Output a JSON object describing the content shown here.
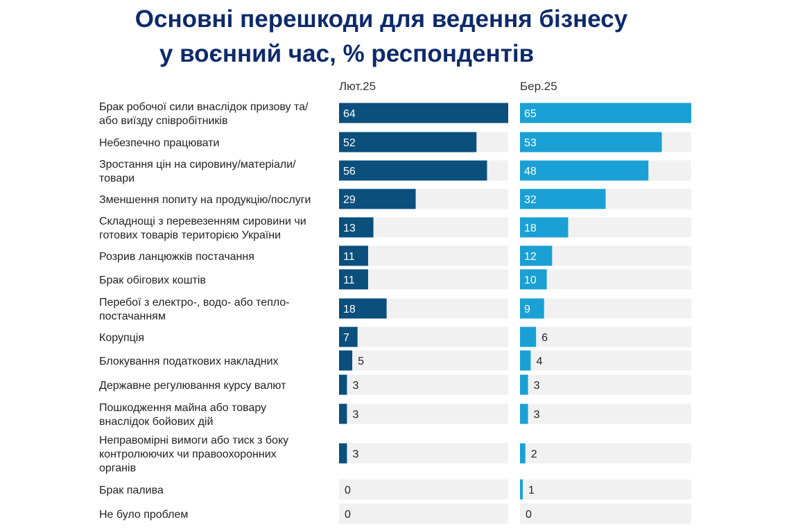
{
  "chart_data": {
    "type": "bar",
    "title_line1": "Основні перешкоди для ведення бізнесу",
    "title_line2": "у воєнний час, % респондентів",
    "xlim": [
      0,
      64
    ],
    "colors": {
      "series1": "#0b4f7c",
      "series2": "#1aa0d4",
      "track": "#f1f1f2"
    },
    "series": [
      {
        "name": "Лют.25",
        "values": [
          64,
          52,
          56,
          29,
          13,
          11,
          11,
          18,
          7,
          5,
          3,
          3,
          3,
          0,
          0
        ]
      },
      {
        "name": "Бер.25",
        "values": [
          65,
          53,
          48,
          32,
          18,
          12,
          10,
          9,
          6,
          4,
          3,
          3,
          2,
          1,
          0
        ]
      }
    ],
    "categories": [
      [
        "Брак робочої сили внаслідок призову та/",
        "або виїзду співробітників"
      ],
      [
        "Небезпечно працювати"
      ],
      [
        "Зростання цін на сировину/матеріали/",
        "товари"
      ],
      [
        "Зменшення попиту на продукцію/послуги"
      ],
      [
        "Складнощі з перевезенням сировини чи",
        "готових товарів територією України"
      ],
      [
        "Розрив ланцюжків постачання"
      ],
      [
        "Брак обігових коштів"
      ],
      [
        "Перебої з електро-, водо- або тепло-",
        "постачанням"
      ],
      [
        "Корупція"
      ],
      [
        "Блокування податкових накладних"
      ],
      [
        "Державне регулювання курсу валют"
      ],
      [
        "Пошкодження майна або товару",
        "внаслідок бойових дій"
      ],
      [
        "Неправомірні вимоги або тиск з боку",
        "контролюючих чи правоохоронних",
        "органів"
      ],
      [
        "Брак палива"
      ],
      [
        "Не було проблем"
      ]
    ]
  }
}
